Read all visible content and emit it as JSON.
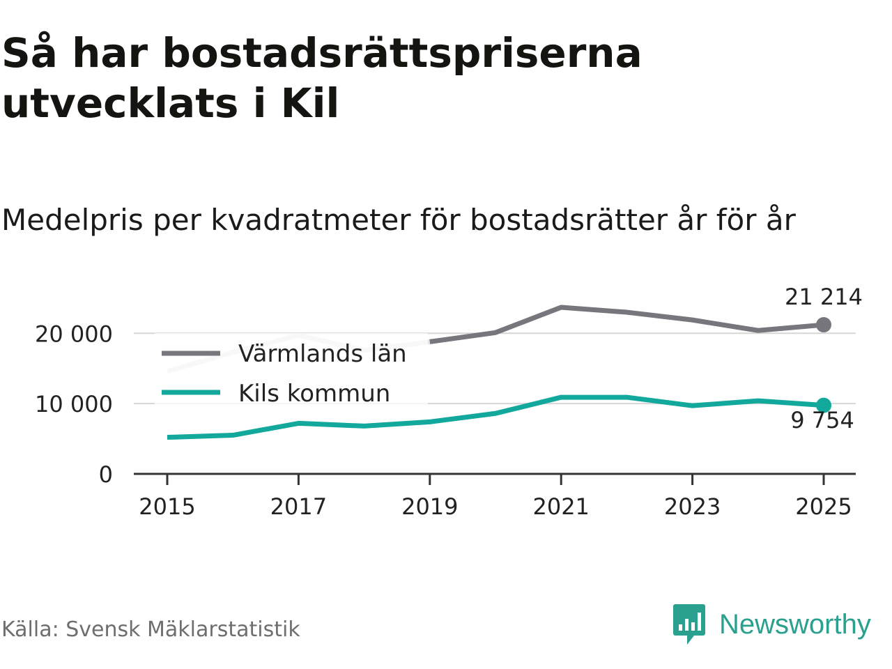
{
  "title": "Så har bostadsrättspriserna utvecklats i Kil",
  "subtitle": "Medelpris per kvadratmeter för bostadsrätter år för år",
  "source": "Källa: Svensk Mäklarstatistik",
  "brand": "Newsworthy",
  "colors": {
    "varmland": "#76767c",
    "varmland_faded": "#e5e5e5",
    "kil": "#12a89c",
    "grid": "#d6d6d6",
    "axis": "#333333",
    "brand": "#2aa08e"
  },
  "chart_data": {
    "type": "line",
    "x": [
      2015,
      2016,
      2017,
      2018,
      2019,
      2020,
      2021,
      2022,
      2023,
      2024,
      2025
    ],
    "x_tick_labels": [
      "2015",
      "2017",
      "2019",
      "2021",
      "2023",
      "2025"
    ],
    "x_ticks": [
      2015,
      2017,
      2019,
      2021,
      2023,
      2025
    ],
    "y_ticks": [
      0,
      10000,
      20000
    ],
    "y_tick_labels": [
      "0",
      "10 000",
      "20 000"
    ],
    "ylim": [
      0,
      23500
    ],
    "grid": true,
    "legend_position": "top-left",
    "series": [
      {
        "name": "Värmlands län",
        "values": [
          14600,
          17300,
          19700,
          17600,
          18800,
          20100,
          23700,
          23000,
          21900,
          20400,
          21214
        ],
        "end_label": "21 214"
      },
      {
        "name": "Kils kommun",
        "values": [
          5200,
          5500,
          7200,
          6800,
          7400,
          8600,
          10900,
          10900,
          9700,
          10400,
          9754
        ],
        "end_label": "9 754"
      }
    ]
  }
}
